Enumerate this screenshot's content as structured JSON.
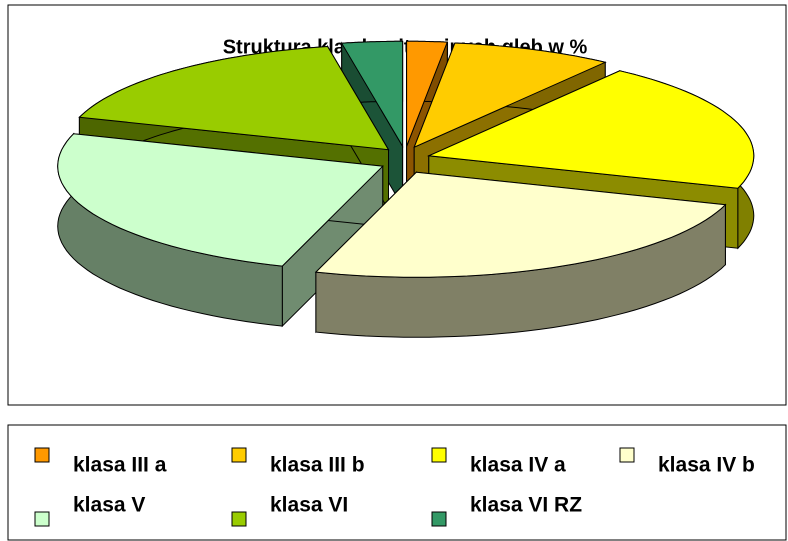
{
  "chart_data": {
    "type": "pie",
    "title": "Struktura klas bonitacyjnych gleb w %",
    "categories": [
      "klasa III a",
      "klasa III b",
      "klasa IV a",
      "klasa IV b",
      "klasa V",
      "klasa VI",
      "klasa VI RZ"
    ],
    "values": [
      2,
      8,
      20,
      25,
      25,
      17,
      3
    ],
    "colors": [
      "#ff9900",
      "#ffcc00",
      "#ffff00",
      "#ffffcc",
      "#ccffcc",
      "#99cc00",
      "#339966"
    ],
    "legend": "bottom"
  }
}
